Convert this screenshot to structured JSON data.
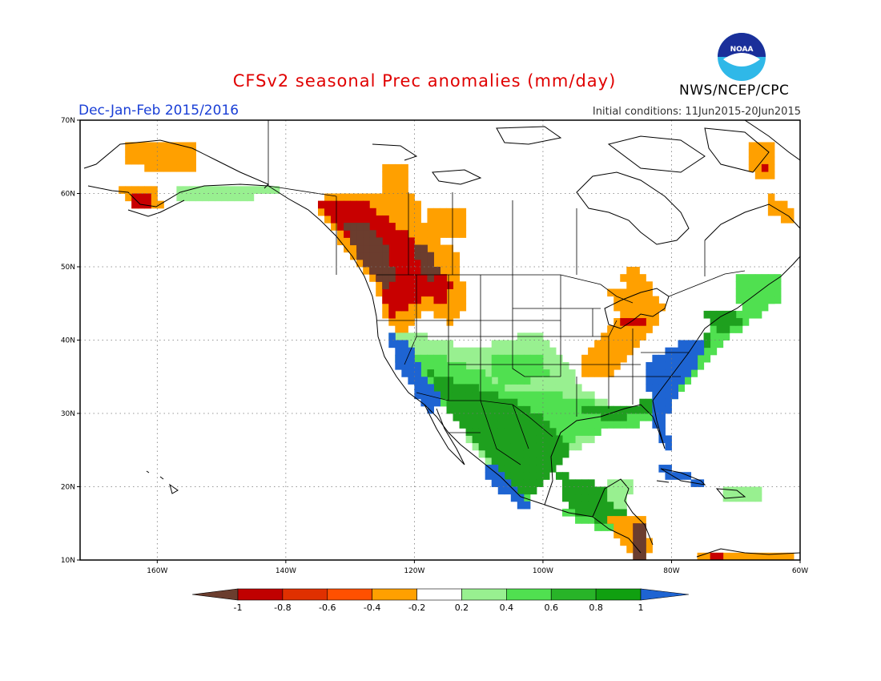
{
  "title": "CFSv2 seasonal Prec anomalies (mm/day)",
  "subtitle": "Dec-Jan-Feb 2015/2016",
  "initial_conditions": "Initial conditions: 11Jun2015-20Jun2015",
  "agency": "NWS/NCEP/CPC",
  "logo_text": "NOAA",
  "map": {
    "lon_range": [
      -172,
      -60
    ],
    "lat_range": [
      10,
      70
    ],
    "lon_ticks": [
      "160W",
      "140W",
      "120W",
      "100W",
      "80W",
      "60W"
    ],
    "lat_ticks": [
      "10N",
      "20N",
      "30N",
      "40N",
      "50N",
      "60N",
      "70N"
    ],
    "grid": "dotted"
  },
  "colorbar": {
    "labels": [
      "-1",
      "-0.8",
      "-0.6",
      "-0.4",
      "-0.2",
      "0.2",
      "0.4",
      "0.6",
      "0.8",
      "1"
    ],
    "colors": [
      "#6b3d2e",
      "#c00000",
      "#e03000",
      "#ff5000",
      "#ffa000",
      "#ffffff",
      "#98f090",
      "#50e050",
      "#28b428",
      "#10a010",
      "#1e64d2"
    ]
  },
  "colors": {
    "dry_strong": "#6b3d2e",
    "dry_red": "#c80000",
    "dry_redorange": "#e83c00",
    "dry_orange": "#ffa000",
    "wet_light": "#98f090",
    "wet_green": "#50e050",
    "wet_dark": "#1ea01e",
    "wet_blue": "#1e64d2"
  }
}
